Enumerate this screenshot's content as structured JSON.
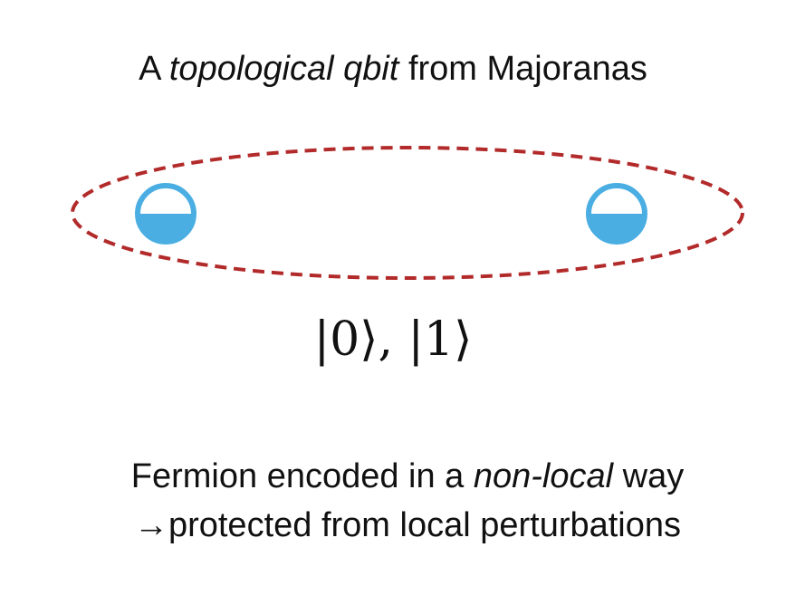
{
  "title": {
    "prefix": "A ",
    "emphasis": "topological qbit",
    "suffix": " from Majoranas"
  },
  "states_label": "|0⟩, |1⟩",
  "caption": {
    "line1_prefix": "Fermion encoded in a ",
    "line1_emphasis": "non-local",
    "line1_suffix": " way",
    "line2": "→protected from local perturbations"
  },
  "colors": {
    "loop": "#b22a2a",
    "majorana_fill": "#4aaee3",
    "majorana_stroke": "#4aaee3",
    "background": "#ffffff",
    "text": "#111111"
  },
  "icons": {
    "majorana_left": "half-filled-circle-icon",
    "majorana_right": "half-filled-circle-icon"
  }
}
